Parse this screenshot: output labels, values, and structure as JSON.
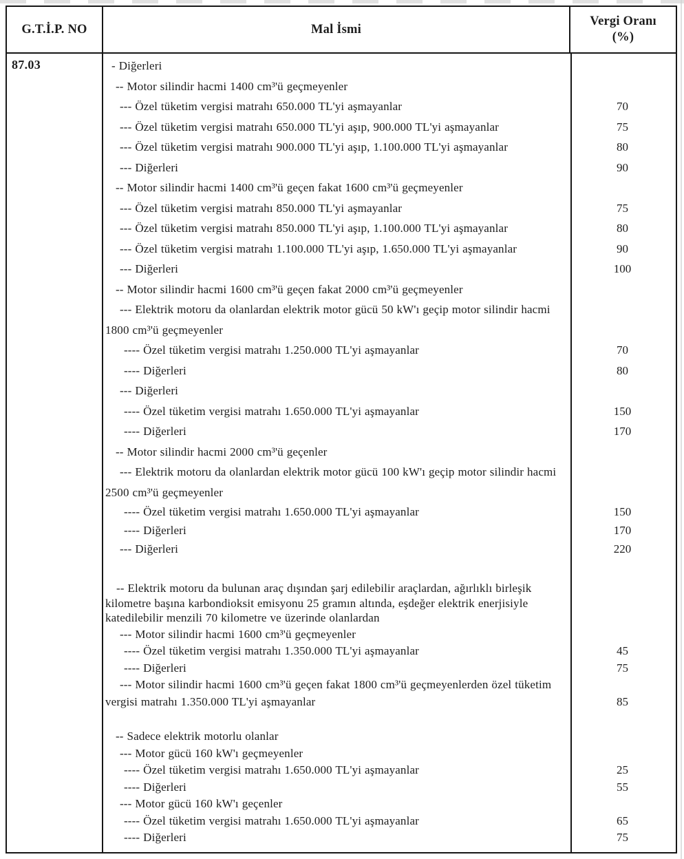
{
  "document": {
    "type": "tax-tariff-table",
    "header": {
      "gtip": "G.T.İ.P. NO",
      "mal_ismi": "Mal İsmi",
      "vergi_orani_line1": "Vergi Oranı",
      "vergi_orani_line2": "(%)"
    },
    "gtip_code": "87.03",
    "rows": [
      {
        "text": "- Diğerleri",
        "rate": "",
        "cls": "i1"
      },
      {
        "text": "-- Motor silindir hacmi 1400 cm³'ü geçmeyenler",
        "rate": "",
        "cls": "i2"
      },
      {
        "text": "--- Özel tüketim vergisi matrahı 650.000 TL'yi aşmayanlar",
        "rate": "70",
        "cls": "i3"
      },
      {
        "text": "--- Özel tüketim vergisi matrahı 650.000 TL'yi aşıp, 900.000 TL'yi aşmayanlar",
        "rate": "75",
        "cls": "i3"
      },
      {
        "text": "--- Özel tüketim vergisi matrahı 900.000 TL'yi aşıp, 1.100.000 TL'yi aşmayanlar",
        "rate": "80",
        "cls": "i3"
      },
      {
        "text": "--- Diğerleri",
        "rate": "90",
        "cls": "i3"
      },
      {
        "text": "-- Motor silindir hacmi 1400 cm³'ü geçen fakat 1600 cm³'ü geçmeyenler",
        "rate": "",
        "cls": "i2"
      },
      {
        "text": "--- Özel tüketim vergisi matrahı 850.000 TL'yi aşmayanlar",
        "rate": "75",
        "cls": "i3"
      },
      {
        "text": "--- Özel tüketim vergisi matrahı 850.000 TL'yi aşıp, 1.100.000 TL'yi aşmayanlar",
        "rate": "80",
        "cls": "i3"
      },
      {
        "text": "--- Özel tüketim vergisi matrahı 1.100.000 TL'yi aşıp, 1.650.000 TL'yi aşmayanlar",
        "rate": "90",
        "cls": "i3"
      },
      {
        "text": "--- Diğerleri",
        "rate": "100",
        "cls": "i3"
      },
      {
        "text": "-- Motor silindir hacmi 1600 cm³'ü geçen fakat 2000 cm³'ü geçmeyenler",
        "rate": "",
        "cls": "i2"
      },
      {
        "text": "--- Elektrik motoru da olanlardan elektrik motor gücü 50 kW'ı geçip motor silindir hacmi 1800 cm³'ü geçmeyenler",
        "rate": "",
        "cls": "i3 wrap"
      },
      {
        "text": "---- Özel tüketim vergisi matrahı 1.250.000 TL'yi aşmayanlar",
        "rate": "70",
        "cls": "i4"
      },
      {
        "text": "---- Diğerleri",
        "rate": "80",
        "cls": "i4"
      },
      {
        "text": "--- Diğerleri",
        "rate": "",
        "cls": "i3"
      },
      {
        "text": "---- Özel tüketim vergisi matrahı 1.650.000 TL'yi aşmayanlar",
        "rate": "150",
        "cls": "i4"
      },
      {
        "text": "---- Diğerleri",
        "rate": "170",
        "cls": "i4"
      },
      {
        "text": "-- Motor silindir hacmi 2000 cm³'ü geçenler",
        "rate": "",
        "cls": "i2"
      },
      {
        "text": "--- Elektrik motoru da olanlardan elektrik motor gücü 100 kW'ı geçip motor silindir hacmi 2500 cm³'ü geçmeyenler",
        "rate": "",
        "cls": "i3 wrap"
      },
      {
        "text": "---- Özel tüketim vergisi matrahı 1.650.000 TL'yi aşmayanlar",
        "rate": "150",
        "cls": "i4 semi"
      },
      {
        "text": "---- Diğerleri",
        "rate": "170",
        "cls": "i4 semi"
      },
      {
        "text": "--- Diğerleri",
        "rate": "220",
        "cls": "i3 semi"
      },
      {
        "text": "-- Elektrik motoru da bulunan araç dışından şarj edilebilir araçlardan, ağırlıklı birleşik kilometre başına karbondioksit emisyonu 25 gramın altında, eşdeğer elektrik enerjisiyle katedilebilir menzili 70 kilometre ve üzerinde olanlardan",
        "rate": "",
        "cls": "i2 wrap para gap-lg"
      },
      {
        "text": "--- Motor silindir hacmi 1600 cm³'ü geçmeyenler",
        "rate": "",
        "cls": "i3 tight"
      },
      {
        "text": "---- Özel tüketim vergisi matrahı 1.350.000 TL'yi aşmayanlar",
        "rate": "45",
        "cls": "i4 tight"
      },
      {
        "text": "---- Diğerleri",
        "rate": "75",
        "cls": "i4 tight"
      },
      {
        "text": "--- Motor silindir hacmi 1600 cm³'ü geçen fakat 1800 cm³'ü geçmeyenlerden özel tüketim vergisi matrahı 1.350.000 TL'yi aşmayanlar",
        "rate": "85",
        "cls": "i3 wrap tight rate-bottom"
      },
      {
        "text": "-- Sadece elektrik motorlu olanlar",
        "rate": "",
        "cls": "i2 tight gap-md"
      },
      {
        "text": "--- Motor gücü 160 kW'ı geçmeyenler",
        "rate": "",
        "cls": "i3 tight"
      },
      {
        "text": "---- Özel tüketim vergisi matrahı 1.650.000 TL'yi aşmayanlar",
        "rate": "25",
        "cls": "i4 tight"
      },
      {
        "text": "---- Diğerleri",
        "rate": "55",
        "cls": "i4 tight"
      },
      {
        "text": "--- Motor gücü 160 kW'ı geçenler",
        "rate": "",
        "cls": "i3 tight"
      },
      {
        "text": "---- Özel tüketim vergisi matrahı 1.650.000 TL'yi aşmayanlar",
        "rate": "65",
        "cls": "i4 tight"
      },
      {
        "text": "---- Diğerleri",
        "rate": "75",
        "cls": "i4 tight"
      }
    ]
  }
}
